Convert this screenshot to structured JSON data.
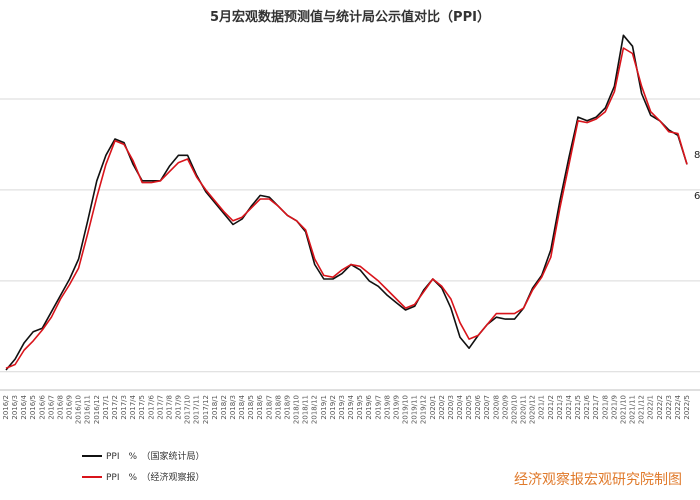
{
  "chart_data": {
    "type": "line",
    "title": "5月宏观数据预测值与统计局公示值对比（PPI）",
    "categories": [
      "2016/2",
      "2016/3",
      "2016/4",
      "2016/5",
      "2016/6",
      "2016/7",
      "2016/8",
      "2016/9",
      "2016/10",
      "2016/11",
      "2016/12",
      "2017/1",
      "2017/2",
      "2017/3",
      "2017/4",
      "2017/5",
      "2017/6",
      "2017/7",
      "2017/8",
      "2017/9",
      "2017/10",
      "2017/11",
      "2017/12",
      "2018/1",
      "2018/2",
      "2018/3",
      "2018/4",
      "2018/5",
      "2018/6",
      "2018/7",
      "2018/8",
      "2018/9",
      "2018/10",
      "2018/11",
      "2018/12",
      "2019/1",
      "2019/2",
      "2019/3",
      "2019/4",
      "2019/5",
      "2019/6",
      "2019/7",
      "2019/8",
      "2019/9",
      "2019/10",
      "2019/11",
      "2019/12",
      "2020/1",
      "2020/2",
      "2020/3",
      "2020/4",
      "2020/5",
      "2020/6",
      "2020/7",
      "2020/8",
      "2020/9",
      "2020/10",
      "2020/11",
      "2020/12",
      "2021/1",
      "2021/2",
      "2021/3",
      "2021/4",
      "2021/5",
      "2021/6",
      "2021/7",
      "2021/8",
      "2021/9",
      "2021/10",
      "2021/11",
      "2021/12",
      "2022/1",
      "2022/2",
      "2022/3",
      "2022/4",
      "2022/5"
    ],
    "ylim": [
      -6,
      15
    ],
    "grid": true,
    "series": [
      {
        "name": "PPI　%　（国家统计局）",
        "color": "#111111",
        "values": [
          -4.9,
          -4.3,
          -3.4,
          -2.8,
          -2.6,
          -1.7,
          -0.8,
          0.1,
          1.2,
          3.3,
          5.5,
          6.9,
          7.8,
          7.6,
          6.4,
          5.5,
          5.5,
          5.5,
          6.3,
          6.9,
          6.9,
          5.8,
          4.9,
          4.3,
          3.7,
          3.1,
          3.4,
          4.1,
          4.7,
          4.6,
          4.1,
          3.6,
          3.3,
          2.7,
          0.9,
          0.1,
          0.1,
          0.4,
          0.9,
          0.6,
          0.0,
          -0.3,
          -0.8,
          -1.2,
          -1.6,
          -1.4,
          -0.5,
          0.1,
          -0.4,
          -1.5,
          -3.1,
          -3.7,
          -3.0,
          -2.4,
          -2.0,
          -2.1,
          -2.1,
          -1.5,
          -0.4,
          0.3,
          1.7,
          4.4,
          6.8,
          9.0,
          8.8,
          9.0,
          9.5,
          10.7,
          13.5,
          12.9,
          10.3,
          9.1,
          8.8,
          8.3,
          8.0,
          6.4
        ],
        "line_width": 1.6
      },
      {
        "name": "PPI　%　（经济观察报）",
        "color": "#d9141b",
        "values": [
          -4.8,
          -4.6,
          -3.8,
          -3.3,
          -2.7,
          -2.0,
          -1.0,
          -0.2,
          0.7,
          2.6,
          4.6,
          6.4,
          7.7,
          7.5,
          6.6,
          5.4,
          5.4,
          5.5,
          6.0,
          6.5,
          6.7,
          5.7,
          5.0,
          4.4,
          3.8,
          3.3,
          3.5,
          4.0,
          4.5,
          4.5,
          4.1,
          3.6,
          3.3,
          2.8,
          1.2,
          0.3,
          0.2,
          0.6,
          0.9,
          0.8,
          0.4,
          0.0,
          -0.5,
          -1.0,
          -1.5,
          -1.3,
          -0.6,
          0.1,
          -0.3,
          -1.0,
          -2.3,
          -3.2,
          -3.0,
          -2.4,
          -1.8,
          -1.8,
          -1.8,
          -1.5,
          -0.5,
          0.2,
          1.3,
          4.0,
          6.4,
          8.8,
          8.7,
          8.9,
          9.3,
          10.4,
          12.8,
          12.5,
          10.7,
          9.3,
          8.8,
          8.2,
          8.1,
          6.4
        ]
      }
    ],
    "end_labels": [
      "8",
      "6"
    ],
    "legend": {
      "placement": "bottom-left"
    }
  },
  "watermark": "经济观察报宏观研究院制图",
  "colors": {
    "grid": "#d9d9d9",
    "axis": "#bfbfbf",
    "watermark": "#e07a2b"
  }
}
